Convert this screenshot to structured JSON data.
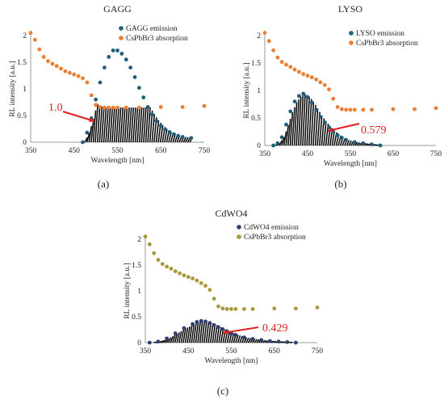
{
  "figure": {
    "captions": [
      "(a)",
      "(b)",
      "(c)"
    ]
  },
  "chart_data": [
    {
      "type": "scatter",
      "title": "GAGG",
      "xlabel": "Wavelength [nm]",
      "ylabel": "RL intensity [a.u.]",
      "xlim": [
        350,
        750
      ],
      "ylim": [
        0,
        2
      ],
      "xticks": [
        "350",
        "450",
        "550",
        "650",
        "750"
      ],
      "yticks": [
        "0",
        "0.5",
        "1",
        "1.5",
        "2"
      ],
      "legend_position": "top-right",
      "grid": false,
      "annotation": {
        "text": "1.0",
        "color": "#e02020",
        "x": 508,
        "y": 0.5
      },
      "overlap_color": "#000000",
      "series": [
        {
          "name": "GAGG emission",
          "color": "#1f5f7a",
          "x": [
            470,
            480,
            490,
            500,
            510,
            520,
            530,
            540,
            550,
            560,
            570,
            580,
            590,
            600,
            610,
            620,
            630,
            640,
            650,
            660,
            670,
            680,
            690,
            700,
            720
          ],
          "y": [
            0.0,
            0.18,
            0.45,
            0.8,
            1.12,
            1.4,
            1.6,
            1.72,
            1.72,
            1.66,
            1.55,
            1.4,
            1.22,
            1.02,
            0.84,
            0.66,
            0.52,
            0.4,
            0.31,
            0.24,
            0.19,
            0.15,
            0.12,
            0.1,
            0.08
          ]
        },
        {
          "name": "CsPbBr3 absorption",
          "color": "#ed7d31",
          "x": [
            350,
            360,
            370,
            380,
            390,
            400,
            410,
            420,
            430,
            440,
            450,
            460,
            470,
            480,
            490,
            500,
            510,
            520,
            530,
            540,
            550,
            570,
            600,
            650,
            700,
            750
          ],
          "y": [
            2.05,
            1.92,
            1.74,
            1.6,
            1.52,
            1.47,
            1.43,
            1.38,
            1.33,
            1.3,
            1.27,
            1.24,
            1.2,
            1.12,
            0.88,
            0.7,
            0.66,
            0.65,
            0.65,
            0.65,
            0.65,
            0.65,
            0.65,
            0.66,
            0.66,
            0.68
          ]
        }
      ]
    },
    {
      "type": "scatter",
      "title": "LYSO",
      "xlabel": "Wavelength [nm]",
      "ylabel": "RL intensity [a.u.]",
      "xlim": [
        350,
        750
      ],
      "ylim": [
        0,
        2
      ],
      "xticks": [
        "350",
        "450",
        "550",
        "650",
        "750"
      ],
      "yticks": [
        "0",
        "0.5",
        "1",
        "1.5",
        "2"
      ],
      "legend_position": "top-right",
      "grid": false,
      "annotation": {
        "text": "0.579",
        "color": "#e02020",
        "x": 480,
        "y": 0.3
      },
      "overlap_color": "#000000",
      "series": [
        {
          "name": "LYSO emission",
          "color": "#1f5f7a",
          "x": [
            370,
            380,
            390,
            400,
            410,
            420,
            430,
            440,
            450,
            460,
            470,
            480,
            490,
            500,
            510,
            520,
            530,
            540,
            560,
            580,
            600,
            620
          ],
          "y": [
            0.0,
            0.04,
            0.15,
            0.38,
            0.62,
            0.8,
            0.9,
            0.94,
            0.88,
            0.78,
            0.65,
            0.52,
            0.42,
            0.33,
            0.25,
            0.19,
            0.14,
            0.1,
            0.06,
            0.04,
            0.02,
            0.0
          ]
        },
        {
          "name": "CsPbBr3 absorption",
          "color": "#ed7d31",
          "x": [
            350,
            360,
            370,
            380,
            390,
            400,
            410,
            420,
            430,
            440,
            450,
            460,
            470,
            480,
            490,
            500,
            510,
            520,
            530,
            540,
            550,
            560,
            580,
            600,
            650,
            700,
            750
          ],
          "y": [
            2.05,
            1.9,
            1.73,
            1.6,
            1.52,
            1.47,
            1.43,
            1.38,
            1.34,
            1.3,
            1.27,
            1.24,
            1.2,
            1.15,
            1.1,
            1.02,
            0.85,
            0.7,
            0.66,
            0.65,
            0.65,
            0.65,
            0.65,
            0.65,
            0.66,
            0.66,
            0.68
          ]
        }
      ]
    },
    {
      "type": "scatter",
      "title": "CdWO4",
      "xlabel": "Wavelength [nm]",
      "ylabel": "RL intensity [a.u.]",
      "xlim": [
        350,
        750
      ],
      "ylim": [
        0,
        2
      ],
      "xticks": [
        "350",
        "450",
        "550",
        "650",
        "750"
      ],
      "yticks": [
        "0",
        "0.5",
        "1",
        "1.5",
        "2"
      ],
      "legend_position": "top-right",
      "grid": false,
      "annotation": {
        "text": "0.429",
        "color": "#e02020",
        "x": 520,
        "y": 0.2
      },
      "overlap_color": "#000000",
      "series": [
        {
          "name": "CdWO4 emission",
          "color": "#2f3f72",
          "x": [
            360,
            380,
            400,
            420,
            440,
            460,
            470,
            480,
            490,
            500,
            510,
            520,
            530,
            540,
            550,
            560,
            580,
            600,
            620,
            640,
            660,
            680,
            700
          ],
          "y": [
            0.0,
            0.02,
            0.08,
            0.18,
            0.28,
            0.36,
            0.4,
            0.42,
            0.41,
            0.38,
            0.34,
            0.3,
            0.26,
            0.22,
            0.18,
            0.15,
            0.1,
            0.07,
            0.05,
            0.03,
            0.02,
            0.01,
            0.0
          ]
        },
        {
          "name": "CsPbBr3 absorption",
          "color": "#a89a3a",
          "x": [
            350,
            360,
            370,
            380,
            390,
            400,
            410,
            420,
            430,
            440,
            450,
            460,
            470,
            480,
            490,
            500,
            510,
            520,
            530,
            540,
            550,
            560,
            580,
            600,
            650,
            700,
            750
          ],
          "y": [
            2.05,
            1.9,
            1.73,
            1.6,
            1.52,
            1.47,
            1.43,
            1.38,
            1.34,
            1.3,
            1.27,
            1.24,
            1.2,
            1.15,
            1.1,
            1.02,
            0.85,
            0.7,
            0.66,
            0.65,
            0.65,
            0.65,
            0.65,
            0.65,
            0.66,
            0.66,
            0.68
          ]
        }
      ]
    }
  ]
}
